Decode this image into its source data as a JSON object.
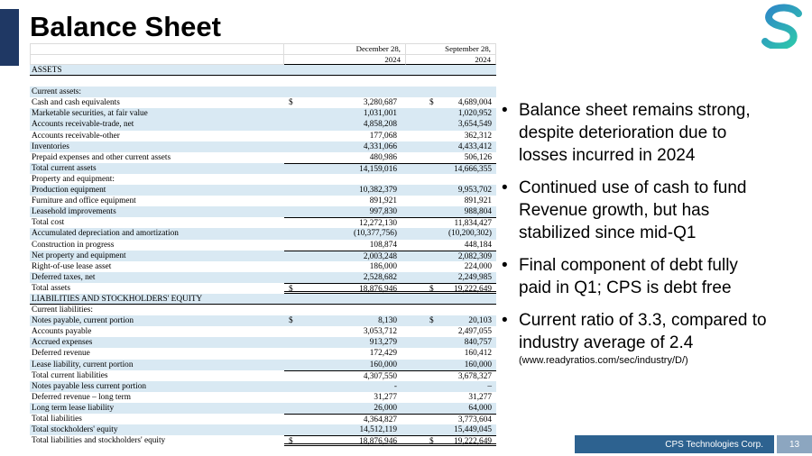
{
  "slide": {
    "title": "Balance Sheet",
    "footer": {
      "company": "CPS Technologies Corp.",
      "page": "13"
    }
  },
  "table": {
    "col_headers": [
      {
        "line1": "December 28,",
        "line2": "2024"
      },
      {
        "line1": "September 28,",
        "line2": "2024"
      }
    ],
    "rows": [
      {
        "label": "ASSETS",
        "shade": true,
        "full": true
      },
      {
        "label": "",
        "blank": true
      },
      {
        "label": "Current assets:",
        "shade": true
      },
      {
        "label": "Cash and cash equivalents",
        "d1": "$",
        "v1": "3,280,687",
        "d2": "$",
        "v2": "4,689,004"
      },
      {
        "label": "Marketable securities, at fair value",
        "v1": "1,031,001",
        "v2": "1,020,952",
        "shade": true
      },
      {
        "label": "Accounts receivable-trade, net",
        "v1": "4,858,208",
        "v2": "3,654,549",
        "shade": true
      },
      {
        "label": "Accounts receivable-other",
        "v1": "177,068",
        "v2": "362,312"
      },
      {
        "label": "Inventories",
        "v1": "4,331,066",
        "v2": "4,433,412",
        "shade": true
      },
      {
        "label": "Prepaid expenses and other current assets",
        "v1": "480,986",
        "v2": "506,126"
      },
      {
        "label": "Total current assets",
        "v1": "14,159,016",
        "v2": "14,666,355",
        "shade": true,
        "top": true
      },
      {
        "label": "Property and equipment:"
      },
      {
        "label": "Production equipment",
        "v1": "10,382,379",
        "v2": "9,953,702",
        "shade": true
      },
      {
        "label": "Furniture and office equipment",
        "v1": "891,921",
        "v2": "891,921"
      },
      {
        "label": "Leasehold improvements",
        "v1": "997,830",
        "v2": "988,804",
        "shade": true
      },
      {
        "label": "Total cost",
        "v1": "12,272,130",
        "v2": "11,834,427",
        "top": true
      },
      {
        "label": "Accumulated depreciation and amortization",
        "v1": "(10,377,756)",
        "v2": "(10,200,302)",
        "shade": true
      },
      {
        "label": "Construction in progress",
        "v1": "108,874",
        "v2": "448,184"
      },
      {
        "label": "Net property and equipment",
        "v1": "2,003,248",
        "v2": "2,082,309",
        "shade": true,
        "top": true
      },
      {
        "label": "Right-of-use lease asset",
        "v1": "186,000",
        "v2": "224,000"
      },
      {
        "label": "Deferred taxes, net",
        "v1": "2,528,682",
        "v2": "2,249,985",
        "shade": true
      },
      {
        "label": "Total assets",
        "d1": "$",
        "v1": "18,876,946",
        "d2": "$",
        "v2": "19,222,649",
        "top": true,
        "dbl": true
      },
      {
        "label": "LIABILITIES AND STOCKHOLDERS' EQUITY",
        "shade": true,
        "full": true
      },
      {
        "label": "Current liabilities:"
      },
      {
        "label": "Notes payable, current portion",
        "d1": "$",
        "v1": "8,130",
        "d2": "$",
        "v2": "20,103",
        "shade": true
      },
      {
        "label": "Accounts payable",
        "v1": "3,053,712",
        "v2": "2,497,055"
      },
      {
        "label": "Accrued expenses",
        "v1": "913,279",
        "v2": "840,757",
        "shade": true
      },
      {
        "label": "Deferred revenue",
        "v1": "172,429",
        "v2": "160,412"
      },
      {
        "label": "Lease liability, current portion",
        "v1": "160,000",
        "v2": "160,000",
        "shade": true
      },
      {
        "label": "Total current liabilities",
        "v1": "4,307,550",
        "v2": "3,678,327",
        "top": true
      },
      {
        "label": "Notes payable less current portion",
        "v1": "-",
        "v2": "–",
        "shade": true
      },
      {
        "label": "Deferred revenue – long term",
        "v1": "31,277",
        "v2": "31,277"
      },
      {
        "label": "Long term lease liability",
        "v1": "26,000",
        "v2": "64,000",
        "shade": true
      },
      {
        "label": "Total liabilities",
        "v1": "4,364,827",
        "v2": "3,773,604",
        "top": true
      },
      {
        "label": "Total stockholders' equity",
        "v1": "14,512,119",
        "v2": "15,449,045",
        "shade": true
      },
      {
        "label": "Total liabilities and stockholders' equity",
        "d1": "$",
        "v1": "18,876,946",
        "d2": "$",
        "v2": "19,222,649",
        "top": true,
        "dbl": true
      }
    ]
  },
  "bullets": [
    {
      "text": "Balance sheet remains strong,\ndespite deterioration due to\nlosses incurred in 2024"
    },
    {
      "text": "Continued use of cash to fund\nRevenue growth, but has\nstabilized since mid-Q1"
    },
    {
      "text": "Final component of debt fully\npaid in Q1; CPS is debt free"
    },
    {
      "text": "Current ratio of 3.3, compared to\nindustry average of 2.4",
      "note": "(www.readyratios.com/sec/industry/D/)"
    }
  ],
  "colors": {
    "accent_bar": "#1F3864",
    "row_shade": "#D9E9F3",
    "footer_bar": "#2D6290",
    "page_box": "#8CA6C0",
    "logo_blue": "#2E86C8",
    "logo_teal": "#2EC4AD"
  }
}
